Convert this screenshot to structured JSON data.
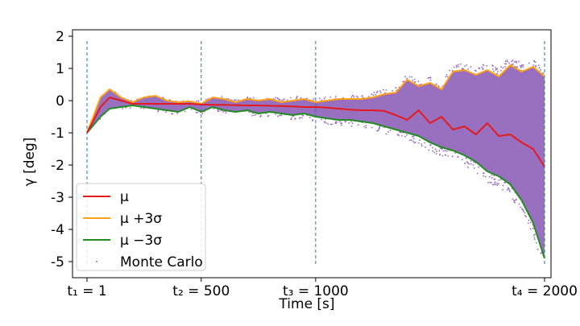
{
  "chart_data": {
    "type": "line",
    "xlabel": "Time [s]",
    "ylabel": "γ [deg]",
    "xlim": [
      1,
      2000
    ],
    "ylim": [
      -5.5,
      2.2
    ],
    "x_ticks": [
      {
        "value": 1,
        "label": "t₁ = 1"
      },
      {
        "value": 500,
        "label": "t₂ = 500"
      },
      {
        "value": 1000,
        "label": "t₃ = 1000"
      },
      {
        "value": 2000,
        "label": "t₄ = 2000"
      }
    ],
    "y_ticks": [
      2,
      1,
      0,
      -1,
      -2,
      -3,
      -4,
      -5
    ],
    "vlines": [
      1,
      500,
      1000,
      2000
    ],
    "legend_placement": "lower-left",
    "grid": false,
    "x": [
      1,
      60,
      100,
      150,
      200,
      250,
      300,
      350,
      400,
      450,
      500,
      550,
      600,
      650,
      700,
      750,
      800,
      850,
      900,
      950,
      1000,
      1050,
      1100,
      1150,
      1200,
      1250,
      1300,
      1350,
      1400,
      1450,
      1500,
      1550,
      1600,
      1650,
      1700,
      1750,
      1800,
      1850,
      1900,
      1950,
      2000
    ],
    "series": [
      {
        "name": "μ",
        "color": "#e41a1c",
        "values": [
          -1.0,
          -0.2,
          0.1,
          0.0,
          -0.1,
          -0.1,
          -0.1,
          -0.1,
          -0.1,
          -0.1,
          -0.12,
          -0.13,
          -0.13,
          -0.14,
          -0.15,
          -0.15,
          -0.16,
          -0.17,
          -0.18,
          -0.2,
          -0.2,
          -0.22,
          -0.25,
          -0.28,
          -0.3,
          -0.3,
          -0.32,
          -0.45,
          -0.6,
          -0.3,
          -0.7,
          -0.5,
          -0.9,
          -0.8,
          -1.05,
          -0.7,
          -1.1,
          -1.05,
          -1.3,
          -1.5,
          -2.05
        ]
      },
      {
        "name": "μ +3σ",
        "color": "#ff9f1a",
        "values": [
          -1.0,
          0.1,
          0.35,
          0.1,
          -0.05,
          0.1,
          0.15,
          0.0,
          -0.05,
          -0.02,
          -0.1,
          0.1,
          0.05,
          -0.05,
          0.05,
          0.0,
          0.05,
          -0.05,
          0.0,
          0.05,
          -0.05,
          0.0,
          0.05,
          0.05,
          0.05,
          0.1,
          0.2,
          0.25,
          0.65,
          0.45,
          0.55,
          0.35,
          0.9,
          0.95,
          0.8,
          0.95,
          0.75,
          1.1,
          0.9,
          1.05,
          0.75
        ]
      },
      {
        "name": "μ −3σ",
        "color": "#228b22",
        "values": [
          -1.0,
          -0.5,
          -0.25,
          -0.2,
          -0.15,
          -0.2,
          -0.25,
          -0.3,
          -0.35,
          -0.2,
          -0.35,
          -0.2,
          -0.3,
          -0.35,
          -0.3,
          -0.4,
          -0.35,
          -0.4,
          -0.45,
          -0.4,
          -0.5,
          -0.55,
          -0.6,
          -0.6,
          -0.65,
          -0.7,
          -0.8,
          -0.9,
          -1.0,
          -1.1,
          -1.3,
          -1.45,
          -1.55,
          -1.7,
          -1.9,
          -2.2,
          -2.35,
          -2.6,
          -3.1,
          -3.8,
          -4.9
        ]
      }
    ],
    "scatter_series": {
      "name": "Monte Carlo",
      "color": "#9467bd",
      "description_levels": "dense band between μ −3σ and μ +3σ, spreading to about −5.4 and +1.3 near t=2000"
    },
    "vline_color": "#1f77b4"
  }
}
